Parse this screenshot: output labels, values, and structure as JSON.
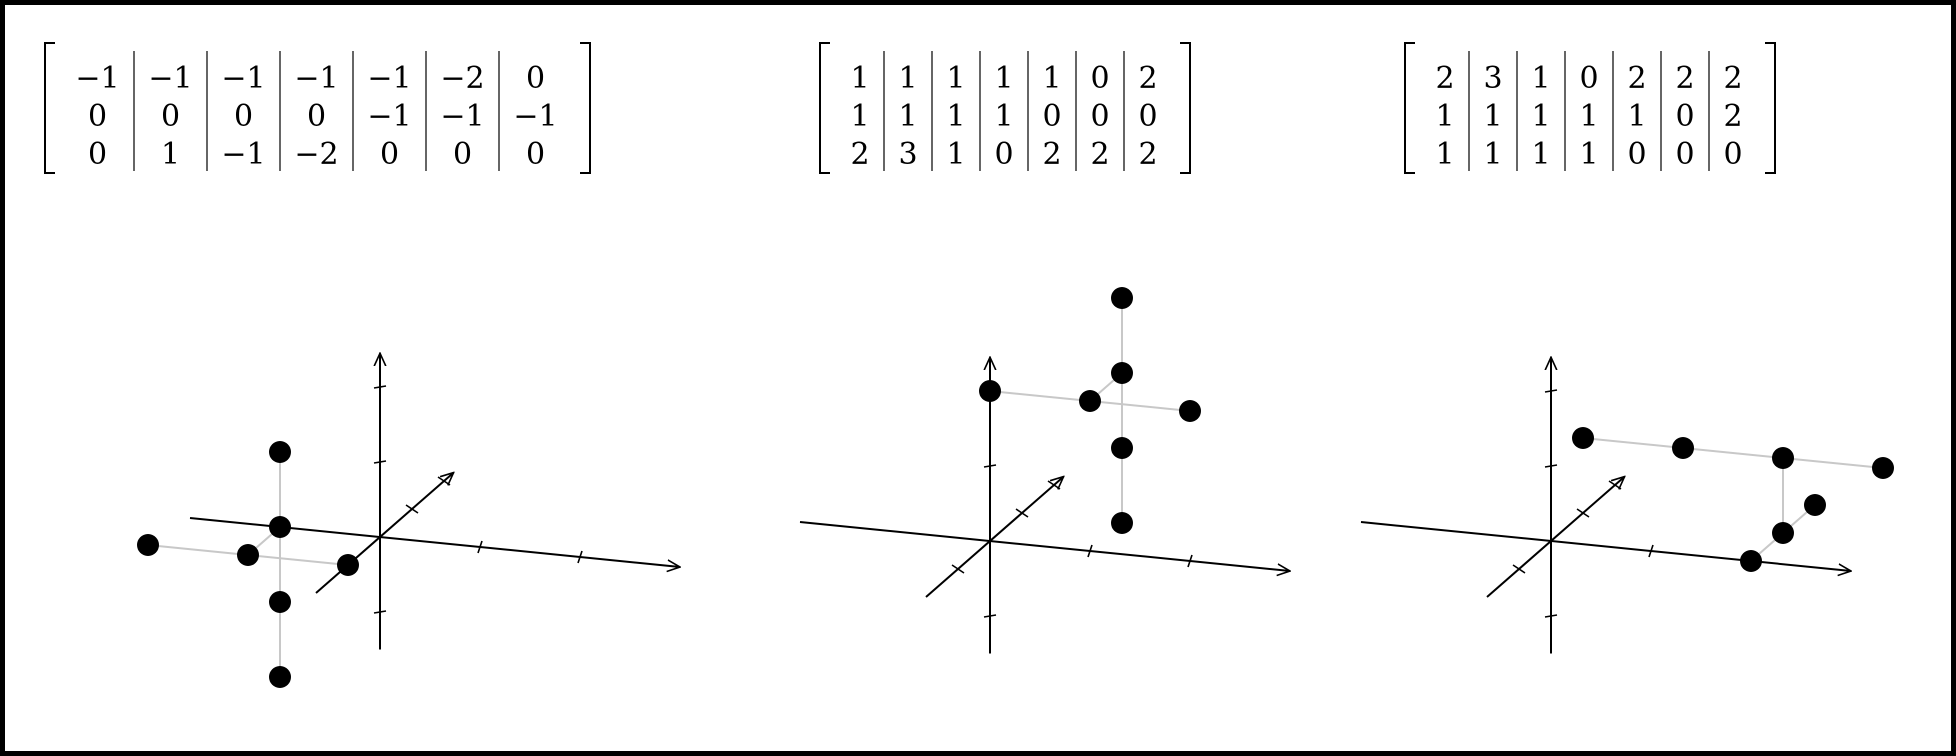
{
  "panels": [
    {
      "matrix": [
        [
          "−1",
          "−1",
          "−1",
          "−1",
          "−1",
          "−2",
          "0"
        ],
        [
          "0",
          "0",
          "0",
          "0",
          "−1",
          "−1",
          "−1"
        ],
        [
          "0",
          "1",
          "−1",
          "−2",
          "0",
          "0",
          "0"
        ]
      ],
      "points": [
        [
          -1,
          0,
          0
        ],
        [
          -1,
          0,
          1
        ],
        [
          -1,
          0,
          -1
        ],
        [
          -1,
          0,
          -2
        ],
        [
          -1,
          -1,
          0
        ],
        [
          -2,
          -1,
          0
        ],
        [
          0,
          -1,
          0
        ]
      ]
    },
    {
      "matrix": [
        [
          "1",
          "1",
          "1",
          "1",
          "1",
          "0",
          "2"
        ],
        [
          "1",
          "1",
          "1",
          "1",
          "0",
          "0",
          "0"
        ],
        [
          "2",
          "3",
          "1",
          "0",
          "2",
          "2",
          "2"
        ]
      ],
      "points": [
        [
          1,
          1,
          2
        ],
        [
          1,
          1,
          3
        ],
        [
          1,
          1,
          1
        ],
        [
          1,
          1,
          0
        ],
        [
          1,
          0,
          2
        ],
        [
          0,
          0,
          2
        ],
        [
          2,
          0,
          2
        ]
      ]
    },
    {
      "matrix": [
        [
          "2",
          "3",
          "1",
          "0",
          "2",
          "2",
          "2"
        ],
        [
          "1",
          "1",
          "1",
          "1",
          "1",
          "0",
          "2"
        ],
        [
          "1",
          "1",
          "1",
          "1",
          "0",
          "0",
          "0"
        ]
      ],
      "points": [
        [
          2,
          1,
          1
        ],
        [
          3,
          1,
          1
        ],
        [
          1,
          1,
          1
        ],
        [
          0,
          1,
          1
        ],
        [
          2,
          1,
          0
        ],
        [
          2,
          0,
          0
        ],
        [
          2,
          2,
          0
        ]
      ]
    }
  ]
}
